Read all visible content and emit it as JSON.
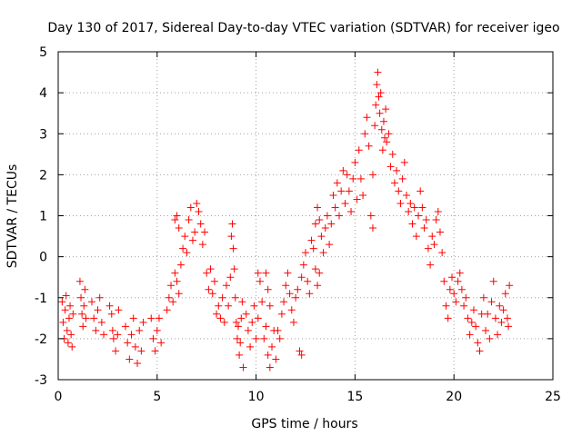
{
  "chart_data": {
    "type": "scatter",
    "title": "Day 130 of 2017, Sidereal Day-to-day VTEC variation (SDTVAR) for receiver igeo",
    "xlabel": "GPS time / hours",
    "ylabel": "SDTVAR / TECUs",
    "xlim": [
      0,
      25
    ],
    "ylim": [
      -3,
      5
    ],
    "xticks": [
      0,
      5,
      10,
      15,
      20,
      25
    ],
    "yticks": [
      -3,
      -2,
      -1,
      0,
      1,
      2,
      3,
      4,
      5
    ],
    "grid": true,
    "marker": "+",
    "color": "#ff0000",
    "series": [
      {
        "name": "SDTVAR",
        "points": [
          [
            0.2,
            -1.1
          ],
          [
            0.25,
            -1.6
          ],
          [
            0.3,
            -2.0
          ],
          [
            0.35,
            -1.3
          ],
          [
            0.4,
            -0.95
          ],
          [
            0.45,
            -1.8
          ],
          [
            0.5,
            -2.1
          ],
          [
            0.55,
            -1.5
          ],
          [
            0.6,
            -1.2
          ],
          [
            0.65,
            -1.9
          ],
          [
            0.7,
            -2.2
          ],
          [
            0.75,
            -1.4
          ],
          [
            1.1,
            -0.6
          ],
          [
            1.15,
            -1.0
          ],
          [
            1.2,
            -1.4
          ],
          [
            1.25,
            -1.7
          ],
          [
            1.3,
            -1.2
          ],
          [
            1.35,
            -0.8
          ],
          [
            1.4,
            -1.5
          ],
          [
            1.7,
            -1.1
          ],
          [
            1.8,
            -1.5
          ],
          [
            1.9,
            -1.8
          ],
          [
            2.0,
            -1.3
          ],
          [
            2.1,
            -1.0
          ],
          [
            2.2,
            -1.6
          ],
          [
            2.3,
            -1.9
          ],
          [
            2.6,
            -1.2
          ],
          [
            2.7,
            -1.4
          ],
          [
            2.75,
            -1.8
          ],
          [
            2.8,
            -2.0
          ],
          [
            2.9,
            -2.3
          ],
          [
            3.0,
            -1.9
          ],
          [
            3.05,
            -1.3
          ],
          [
            3.4,
            -1.7
          ],
          [
            3.5,
            -2.1
          ],
          [
            3.6,
            -2.5
          ],
          [
            3.7,
            -1.9
          ],
          [
            3.8,
            -1.5
          ],
          [
            3.9,
            -2.2
          ],
          [
            4.0,
            -2.6
          ],
          [
            4.1,
            -1.8
          ],
          [
            4.2,
            -2.3
          ],
          [
            4.3,
            -1.6
          ],
          [
            4.7,
            -1.5
          ],
          [
            4.8,
            -2.0
          ],
          [
            4.9,
            -2.3
          ],
          [
            5.0,
            -1.8
          ],
          [
            5.1,
            -1.5
          ],
          [
            5.2,
            -2.1
          ],
          [
            5.5,
            -1.3
          ],
          [
            5.6,
            -1.0
          ],
          [
            5.7,
            -0.7
          ],
          [
            5.8,
            -1.1
          ],
          [
            5.9,
            -0.4
          ],
          [
            6.0,
            -0.6
          ],
          [
            6.1,
            -0.9
          ],
          [
            5.9,
            0.9
          ],
          [
            6.0,
            1.0
          ],
          [
            6.1,
            0.7
          ],
          [
            6.2,
            -0.2
          ],
          [
            6.3,
            0.2
          ],
          [
            6.4,
            0.5
          ],
          [
            6.5,
            0.1
          ],
          [
            6.6,
            0.9
          ],
          [
            6.7,
            1.2
          ],
          [
            6.8,
            0.4
          ],
          [
            6.9,
            0.6
          ],
          [
            7.0,
            1.3
          ],
          [
            7.1,
            1.1
          ],
          [
            7.2,
            0.8
          ],
          [
            7.3,
            0.3
          ],
          [
            7.4,
            0.6
          ],
          [
            7.5,
            -0.4
          ],
          [
            7.6,
            -0.8
          ],
          [
            7.7,
            -0.3
          ],
          [
            7.8,
            -0.9
          ],
          [
            7.9,
            -0.6
          ],
          [
            8.0,
            -1.4
          ],
          [
            8.1,
            -1.2
          ],
          [
            8.2,
            -1.5
          ],
          [
            8.3,
            -1.0
          ],
          [
            8.4,
            -1.6
          ],
          [
            8.5,
            -0.7
          ],
          [
            8.6,
            -1.2
          ],
          [
            8.7,
            -0.5
          ],
          [
            8.75,
            0.5
          ],
          [
            8.8,
            0.8
          ],
          [
            8.85,
            0.2
          ],
          [
            8.9,
            -0.3
          ],
          [
            8.95,
            -1.0
          ],
          [
            9.0,
            -1.6
          ],
          [
            9.05,
            -2.0
          ],
          [
            9.1,
            -1.7
          ],
          [
            9.15,
            -2.4
          ],
          [
            9.2,
            -2.1
          ],
          [
            9.25,
            -1.5
          ],
          [
            9.3,
            -1.1
          ],
          [
            9.35,
            -2.7
          ],
          [
            9.5,
            -1.4
          ],
          [
            9.6,
            -1.8
          ],
          [
            9.7,
            -2.2
          ],
          [
            9.8,
            -1.6
          ],
          [
            9.9,
            -1.2
          ],
          [
            10.0,
            -2.0
          ],
          [
            10.1,
            -1.5
          ],
          [
            10.1,
            -0.4
          ],
          [
            10.2,
            -0.6
          ],
          [
            10.3,
            -1.1
          ],
          [
            10.4,
            -2.0
          ],
          [
            10.5,
            -1.7
          ],
          [
            10.6,
            -2.4
          ],
          [
            10.7,
            -2.7
          ],
          [
            10.8,
            -2.2
          ],
          [
            10.9,
            -1.8
          ],
          [
            11.0,
            -2.5
          ],
          [
            10.5,
            -0.4
          ],
          [
            10.6,
            -0.8
          ],
          [
            10.7,
            -1.2
          ],
          [
            11.1,
            -1.8
          ],
          [
            11.2,
            -2.0
          ],
          [
            11.3,
            -1.4
          ],
          [
            11.4,
            -1.1
          ],
          [
            11.5,
            -0.7
          ],
          [
            11.6,
            -0.4
          ],
          [
            11.7,
            -0.9
          ],
          [
            11.8,
            -1.3
          ],
          [
            11.9,
            -1.6
          ],
          [
            12.0,
            -1.0
          ],
          [
            12.1,
            -0.8
          ],
          [
            12.2,
            -2.3
          ],
          [
            12.3,
            -2.4
          ],
          [
            12.3,
            -0.5
          ],
          [
            12.4,
            -0.2
          ],
          [
            12.5,
            0.1
          ],
          [
            12.6,
            -0.6
          ],
          [
            12.7,
            -0.9
          ],
          [
            12.8,
            0.4
          ],
          [
            12.9,
            0.2
          ],
          [
            13.0,
            -0.3
          ],
          [
            13.1,
            -0.7
          ],
          [
            13.2,
            -0.4
          ],
          [
            13.0,
            0.8
          ],
          [
            13.1,
            1.2
          ],
          [
            13.2,
            0.9
          ],
          [
            13.3,
            0.5
          ],
          [
            13.4,
            0.1
          ],
          [
            13.5,
            0.7
          ],
          [
            13.6,
            1.0
          ],
          [
            13.7,
            0.3
          ],
          [
            13.8,
            0.8
          ],
          [
            13.9,
            1.5
          ],
          [
            14.0,
            1.2
          ],
          [
            14.1,
            1.8
          ],
          [
            14.2,
            1.0
          ],
          [
            14.3,
            1.6
          ],
          [
            14.4,
            2.1
          ],
          [
            14.5,
            1.3
          ],
          [
            14.6,
            2.0
          ],
          [
            14.7,
            1.6
          ],
          [
            14.8,
            1.1
          ],
          [
            14.9,
            1.9
          ],
          [
            15.0,
            2.3
          ],
          [
            15.1,
            1.4
          ],
          [
            15.2,
            2.6
          ],
          [
            15.3,
            1.9
          ],
          [
            15.4,
            1.5
          ],
          [
            15.5,
            3.0
          ],
          [
            15.6,
            3.4
          ],
          [
            15.7,
            2.7
          ],
          [
            15.8,
            1.0
          ],
          [
            15.9,
            0.7
          ],
          [
            15.9,
            2.0
          ],
          [
            16.0,
            3.2
          ],
          [
            16.05,
            3.7
          ],
          [
            16.1,
            4.2
          ],
          [
            16.15,
            4.5
          ],
          [
            16.2,
            3.9
          ],
          [
            16.25,
            3.5
          ],
          [
            16.3,
            4.0
          ],
          [
            16.35,
            3.1
          ],
          [
            16.4,
            2.6
          ],
          [
            16.45,
            3.3
          ],
          [
            16.5,
            2.9
          ],
          [
            16.55,
            3.6
          ],
          [
            16.6,
            2.8
          ],
          [
            16.7,
            3.0
          ],
          [
            16.8,
            2.2
          ],
          [
            16.9,
            2.5
          ],
          [
            17.0,
            1.8
          ],
          [
            17.1,
            2.1
          ],
          [
            17.2,
            1.6
          ],
          [
            17.3,
            1.3
          ],
          [
            17.4,
            1.9
          ],
          [
            17.5,
            2.3
          ],
          [
            17.6,
            1.5
          ],
          [
            17.7,
            1.1
          ],
          [
            17.8,
            1.3
          ],
          [
            17.9,
            0.8
          ],
          [
            18.0,
            1.2
          ],
          [
            18.1,
            0.5
          ],
          [
            18.2,
            1.0
          ],
          [
            18.3,
            1.6
          ],
          [
            18.4,
            1.2
          ],
          [
            18.5,
            0.7
          ],
          [
            18.6,
            0.9
          ],
          [
            18.7,
            0.2
          ],
          [
            18.8,
            -0.2
          ],
          [
            18.9,
            0.5
          ],
          [
            19.0,
            0.3
          ],
          [
            19.1,
            0.9
          ],
          [
            19.2,
            1.1
          ],
          [
            19.3,
            0.6
          ],
          [
            19.4,
            0.1
          ],
          [
            19.5,
            -0.6
          ],
          [
            19.6,
            -1.2
          ],
          [
            19.7,
            -1.5
          ],
          [
            19.8,
            -0.8
          ],
          [
            19.9,
            -0.5
          ],
          [
            20.0,
            -0.9
          ],
          [
            20.1,
            -1.1
          ],
          [
            20.2,
            -0.6
          ],
          [
            20.3,
            -0.4
          ],
          [
            20.4,
            -0.8
          ],
          [
            20.5,
            -1.2
          ],
          [
            20.6,
            -1.0
          ],
          [
            20.7,
            -1.5
          ],
          [
            20.8,
            -1.9
          ],
          [
            20.9,
            -1.6
          ],
          [
            21.0,
            -1.3
          ],
          [
            21.1,
            -1.7
          ],
          [
            21.2,
            -2.1
          ],
          [
            21.3,
            -2.3
          ],
          [
            21.4,
            -1.4
          ],
          [
            21.5,
            -1.0
          ],
          [
            21.6,
            -1.8
          ],
          [
            21.7,
            -1.4
          ],
          [
            21.8,
            -2.0
          ],
          [
            21.9,
            -1.1
          ],
          [
            22.0,
            -0.6
          ],
          [
            22.1,
            -1.5
          ],
          [
            22.2,
            -1.9
          ],
          [
            22.3,
            -1.2
          ],
          [
            22.4,
            -1.6
          ],
          [
            22.5,
            -1.3
          ],
          [
            22.6,
            -0.9
          ],
          [
            22.7,
            -1.5
          ],
          [
            22.75,
            -1.7
          ],
          [
            22.8,
            -0.7
          ]
        ]
      }
    ]
  }
}
